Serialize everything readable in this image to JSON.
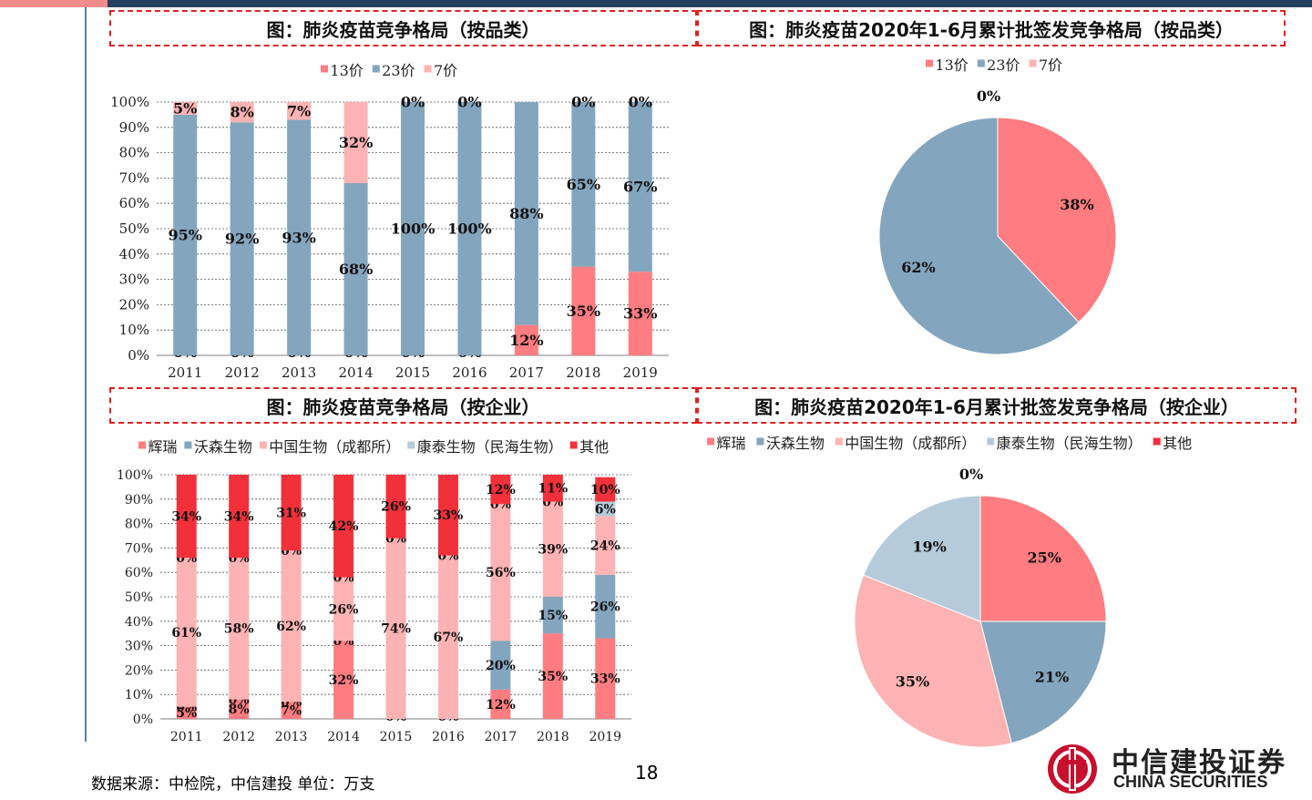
{
  "titles": {
    "tl": "图：肺炎疫苗竞争格局（按品类）",
    "tr": "图：肺炎疫苗2020年1-6月累计批签发竞争格局（按品类）",
    "bl": "图：肺炎疫苗竞争格局（按企业）",
    "br": "图：肺炎疫苗2020年1-6月累计批签发竞争格局（按企业）"
  },
  "source_note": "数据来源：中检院，中信建投 单位：万支",
  "page_number": "18",
  "logo": {
    "cn": "中信建投证券",
    "en": "CHINA SECURITIES"
  },
  "chart_data": [
    {
      "type": "bar",
      "stacked": true,
      "categories": [
        "2011",
        "2012",
        "2013",
        "2014",
        "2015",
        "2016",
        "2017",
        "2018",
        "2019"
      ],
      "series": [
        {
          "name": "13价",
          "color": "#ff7c80",
          "values": [
            0,
            0,
            0,
            0,
            0,
            0,
            12,
            35,
            33
          ],
          "labels": [
            "0%",
            "0%",
            "0%",
            "0%",
            "0%",
            "0%",
            "12%",
            "35%",
            "33%"
          ]
        },
        {
          "name": "23价",
          "color": "#84a5be",
          "values": [
            95,
            92,
            93,
            68,
            100,
            100,
            88,
            65,
            67
          ],
          "labels": [
            "95%",
            "92%",
            "93%",
            "68%",
            "100%",
            "100%",
            "88%",
            "65%",
            "67%"
          ]
        },
        {
          "name": "7价",
          "color": "#fdb3b3",
          "values": [
            5,
            8,
            7,
            32,
            0,
            0,
            0,
            0,
            0
          ],
          "labels": [
            "5%",
            "8%",
            "7%",
            "32%",
            "0%",
            "0%",
            "",
            "0%",
            "0%"
          ]
        }
      ],
      "yticks": [
        "0%",
        "10%",
        "20%",
        "30%",
        "40%",
        "50%",
        "60%",
        "70%",
        "80%",
        "90%",
        "100%"
      ],
      "ylim": [
        0,
        100
      ],
      "grid": true,
      "legend": "top"
    },
    {
      "type": "pie",
      "labels": [
        "13价",
        "23价",
        "7价"
      ],
      "values": [
        38,
        62,
        0
      ],
      "value_labels": [
        "38%",
        "62%",
        "0%"
      ],
      "colors": [
        "#ff7c80",
        "#84a5be",
        "#fdb3b3"
      ],
      "legend": "top"
    },
    {
      "type": "bar",
      "stacked": true,
      "categories": [
        "2011",
        "2012",
        "2013",
        "2014",
        "2015",
        "2016",
        "2017",
        "2018",
        "2019"
      ],
      "series": [
        {
          "name": "辉瑞",
          "color": "#ff7c80",
          "values": [
            5,
            8,
            7,
            32,
            0,
            0,
            12,
            35,
            33
          ],
          "labels": [
            "5%",
            "8%",
            "7%",
            "32%",
            "0%",
            "0%",
            "12%",
            "35%",
            "33%"
          ]
        },
        {
          "name": "沃森生物",
          "color": "#84a5be",
          "values": [
            0,
            0,
            0,
            0,
            0,
            0,
            20,
            15,
            26
          ],
          "labels": [
            "0%",
            "0%",
            "0%",
            "0%",
            "",
            "",
            "20%",
            "15%",
            "26%"
          ]
        },
        {
          "name": "中国生物（成都所）",
          "color": "#fdb3b3",
          "values": [
            61,
            58,
            62,
            26,
            74,
            67,
            56,
            39,
            24
          ],
          "labels": [
            "61%",
            "58%",
            "62%",
            "26%",
            "74%",
            "67%",
            "56%",
            "39%",
            "24%"
          ]
        },
        {
          "name": "康泰生物（民海生物）",
          "color": "#b5cbda",
          "values": [
            0,
            0,
            0,
            0,
            0,
            0,
            0,
            0,
            6
          ],
          "labels": [
            "0%",
            "0%",
            "0%",
            "0%",
            "0%",
            "0%",
            "0%",
            "0%",
            "6%"
          ]
        },
        {
          "name": "其他",
          "color": "#f2303a",
          "values": [
            34,
            34,
            31,
            42,
            26,
            33,
            12,
            11,
            10
          ],
          "labels": [
            "34%",
            "34%",
            "31%",
            "42%",
            "26%",
            "33%",
            "12%",
            "11%",
            "10%"
          ]
        }
      ],
      "yticks": [
        "0%",
        "10%",
        "20%",
        "30%",
        "40%",
        "50%",
        "60%",
        "70%",
        "80%",
        "90%",
        "100%"
      ],
      "ylim": [
        0,
        100
      ],
      "grid": true,
      "legend": "top"
    },
    {
      "type": "pie",
      "labels": [
        "辉瑞",
        "沃森生物",
        "中国生物（成都所）",
        "康泰生物（民海生物）",
        "其他"
      ],
      "values": [
        25,
        21,
        35,
        19,
        0
      ],
      "value_labels": [
        "25%",
        "21%",
        "35%",
        "19%",
        "0%"
      ],
      "colors": [
        "#ff7c80",
        "#84a5be",
        "#fdb3b3",
        "#b5cbda",
        "#f2303a"
      ],
      "legend": "top"
    }
  ]
}
